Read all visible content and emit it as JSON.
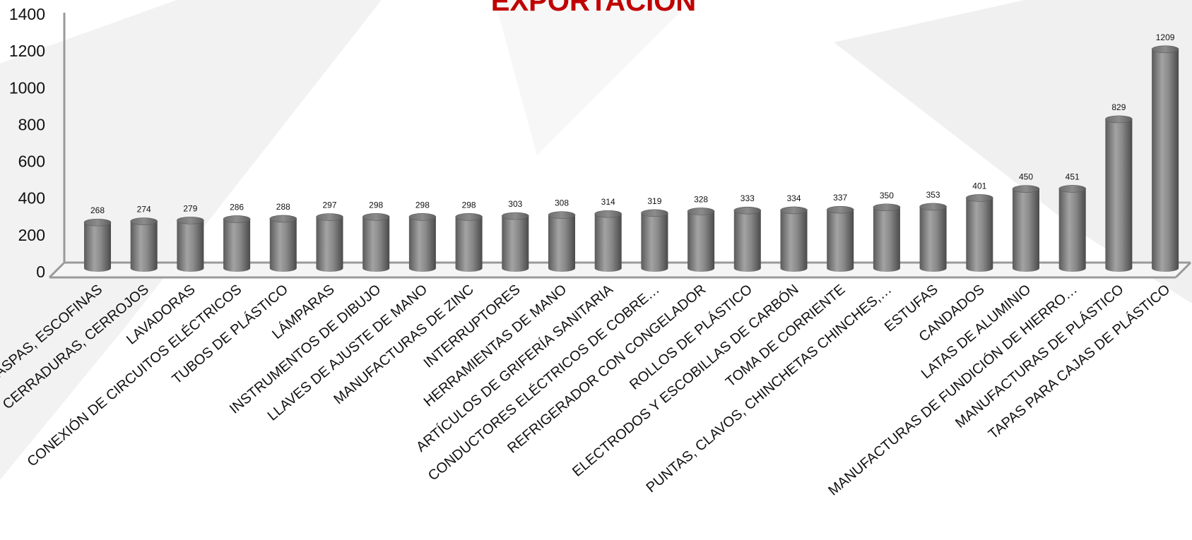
{
  "chart_data": {
    "type": "bar",
    "title": "EXPORTACIÓN",
    "xlabel": "",
    "ylabel": "",
    "ylim": [
      0,
      1400
    ],
    "yticks": [
      0,
      200,
      400,
      600,
      800,
      1000,
      1200,
      1400
    ],
    "grid": false,
    "legend": "none",
    "bar_style": "3d-cylinder",
    "colors": {
      "bar": "#808080",
      "title": "#c00000",
      "axis": "#9a9a9a",
      "text": "#111111"
    },
    "categories": [
      "LIMAS, RASPAS, ESCOFINAS",
      "CERRADURAS, CERROJOS",
      "LAVADORAS",
      "CONEXIÓN DE CIRCUITOS ELÉCTRICOS",
      "TUBOS DE PLÁSTICO",
      "LÁMPARAS",
      "INSTRUMENTOS DE DIBUJO",
      "LLAVES DE AJUSTE DE MANO",
      "MANUFACTURAS DE ZINC",
      "INTERRUPTORES",
      "HERRAMIENTAS DE MANO",
      "ARTÍCULOS DE GRIFERÍA SANITARIA",
      "CONDUCTORES ELÉCTRICOS DE COBRE…",
      "REFRIGERADOR CON CONGELADOR",
      "ROLLOS DE PLÁSTICO",
      "ELECTRODOS Y ESCOBILLAS DE CARBÓN",
      "TOMA DE CORRIENTE",
      "PUNTAS, CLAVOS, CHINCHETAS CHINCHES,…",
      "ESTUFAS",
      "CANDADOS",
      "LATAS DE ALUMINIO",
      "MANUFACTURAS DE FUNDICIÓN DE HIERRO…",
      "MANUFACTURAS DE PLÁSTICO",
      "TAPAS PARA CAJAS DE PLÁSTICO"
    ],
    "values": [
      268,
      274,
      279,
      286,
      288,
      297,
      298,
      298,
      298,
      303,
      308,
      314,
      319,
      328,
      333,
      334,
      337,
      350,
      353,
      401,
      450,
      451,
      829,
      1209
    ],
    "data_labels": [
      "268",
      "274",
      "279",
      "286",
      "288",
      "297",
      "298",
      "298",
      "298",
      "303",
      "308",
      "314",
      "319",
      "328",
      "333",
      "334",
      "337",
      "350",
      "353",
      "401",
      "450",
      "451",
      "829",
      "1209"
    ]
  }
}
